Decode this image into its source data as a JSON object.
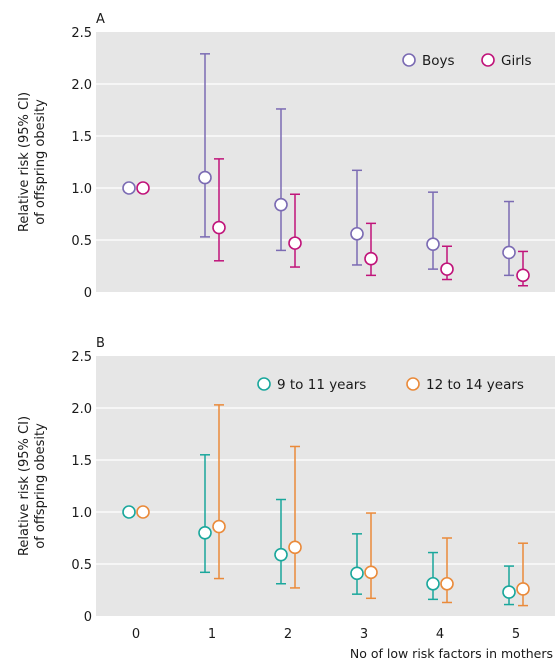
{
  "chart_data": [
    {
      "type": "scatter",
      "panel_label": "A",
      "ylabel": [
        "Relative risk (95% CI)",
        "of offspring obesity"
      ],
      "ylim": [
        0,
        2.5
      ],
      "yticks": [
        0,
        0.5,
        1.0,
        1.5,
        2.0,
        2.5
      ],
      "ytick_labels": [
        "0",
        "0.5",
        "1.0",
        "1.5",
        "2.0",
        "2.5"
      ],
      "x": [
        0,
        1,
        2,
        3,
        4,
        5
      ],
      "legend_position": "top-right",
      "series": [
        {
          "name": "Boys",
          "color": "#7b6bb3",
          "values": [
            1.0,
            1.1,
            0.84,
            0.56,
            0.46,
            0.38
          ],
          "lower": [
            1.0,
            0.53,
            0.4,
            0.26,
            0.22,
            0.16
          ],
          "upper": [
            1.0,
            2.29,
            1.76,
            1.17,
            0.96,
            0.87
          ]
        },
        {
          "name": "Girls",
          "color": "#c0147a",
          "values": [
            1.0,
            0.62,
            0.47,
            0.32,
            0.22,
            0.16
          ],
          "lower": [
            1.0,
            0.3,
            0.24,
            0.16,
            0.12,
            0.06
          ],
          "upper": [
            1.0,
            1.28,
            0.94,
            0.66,
            0.44,
            0.39
          ]
        }
      ]
    },
    {
      "type": "scatter",
      "panel_label": "B",
      "ylabel": [
        "Relative risk (95% CI)",
        "of offspring obesity"
      ],
      "ylim": [
        0,
        2.5
      ],
      "yticks": [
        0,
        0.5,
        1.0,
        1.5,
        2.0,
        2.5
      ],
      "ytick_labels": [
        "0",
        "0.5",
        "1.0",
        "1.5",
        "2.0",
        "2.5"
      ],
      "x": [
        0,
        1,
        2,
        3,
        4,
        5
      ],
      "xtick_labels": [
        "0",
        "1",
        "2",
        "3",
        "4",
        "5"
      ],
      "xlabel": "No of low risk factors in mothers",
      "legend_position": "top-right",
      "series": [
        {
          "name": "9 to 11 years",
          "color": "#1aa79c",
          "values": [
            1.0,
            0.8,
            0.59,
            0.41,
            0.31,
            0.23
          ],
          "lower": [
            1.0,
            0.42,
            0.31,
            0.21,
            0.16,
            0.11
          ],
          "upper": [
            1.0,
            1.55,
            1.12,
            0.79,
            0.61,
            0.48
          ]
        },
        {
          "name": "12 to 14 years",
          "color": "#ea8a3a",
          "values": [
            1.0,
            0.86,
            0.66,
            0.42,
            0.31,
            0.26
          ],
          "lower": [
            1.0,
            0.36,
            0.27,
            0.17,
            0.13,
            0.1
          ],
          "upper": [
            1.0,
            2.03,
            1.63,
            0.99,
            0.75,
            0.7
          ]
        }
      ]
    }
  ]
}
